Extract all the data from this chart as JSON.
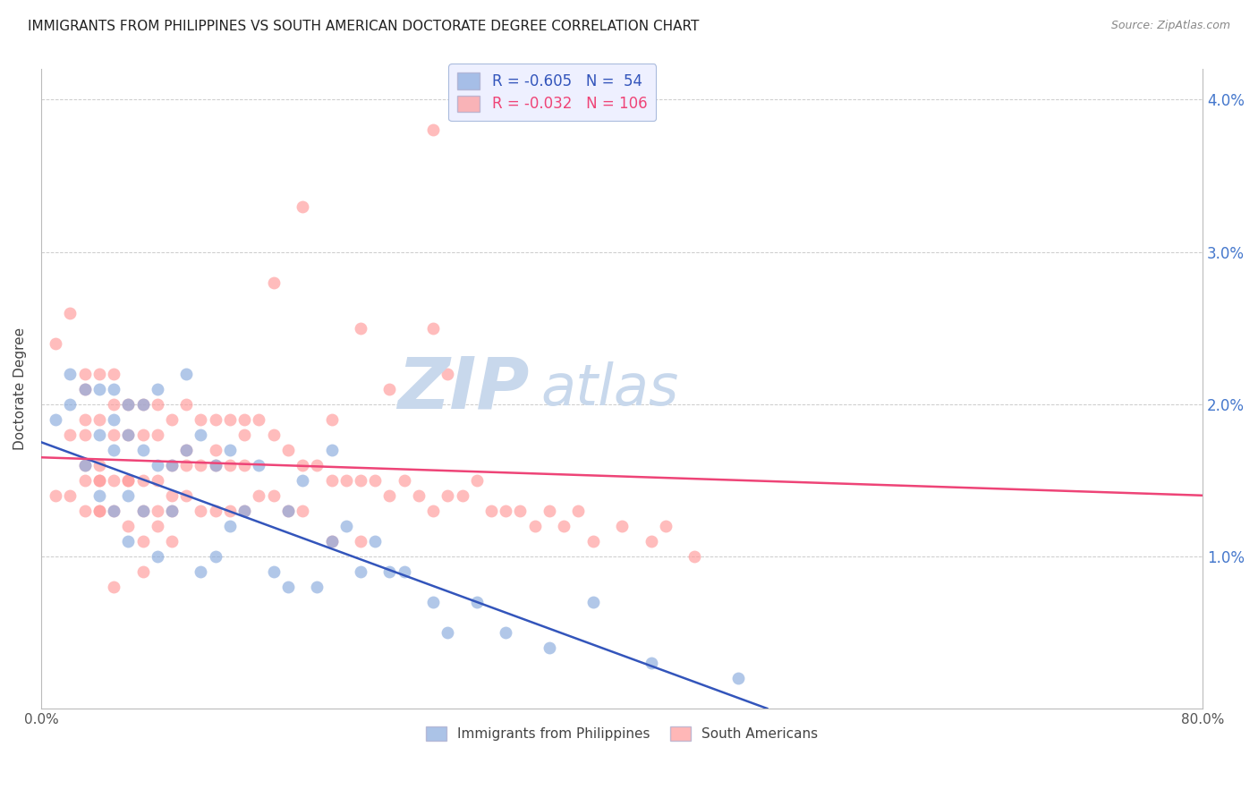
{
  "title": "IMMIGRANTS FROM PHILIPPINES VS SOUTH AMERICAN DOCTORATE DEGREE CORRELATION CHART",
  "source": "Source: ZipAtlas.com",
  "ylabel": "Doctorate Degree",
  "xlim": [
    0.0,
    0.8
  ],
  "ylim": [
    0.0,
    0.042
  ],
  "philippines_R": -0.605,
  "philippines_N": 54,
  "south_american_R": -0.032,
  "south_american_N": 106,
  "philippines_color": "#88AADD",
  "south_american_color": "#FF9999",
  "philippines_line_color": "#3355BB",
  "south_american_line_color": "#EE4477",
  "background_color": "#FFFFFF",
  "grid_color": "#CCCCCC",
  "title_color": "#222222",
  "axis_label_color": "#444444",
  "right_axis_color": "#4477CC",
  "watermark_zip_color": "#C8D8EC",
  "watermark_atlas_color": "#C8D8EC",
  "legend_box_color": "#EEF0FF",
  "philippines_x": [
    0.01,
    0.02,
    0.02,
    0.03,
    0.03,
    0.04,
    0.04,
    0.04,
    0.05,
    0.05,
    0.05,
    0.05,
    0.06,
    0.06,
    0.06,
    0.06,
    0.07,
    0.07,
    0.07,
    0.08,
    0.08,
    0.08,
    0.09,
    0.09,
    0.1,
    0.1,
    0.11,
    0.11,
    0.12,
    0.12,
    0.13,
    0.13,
    0.14,
    0.15,
    0.16,
    0.17,
    0.17,
    0.18,
    0.19,
    0.2,
    0.2,
    0.21,
    0.22,
    0.23,
    0.24,
    0.25,
    0.27,
    0.28,
    0.3,
    0.32,
    0.35,
    0.38,
    0.42,
    0.48
  ],
  "philippines_y": [
    0.019,
    0.022,
    0.02,
    0.021,
    0.016,
    0.021,
    0.018,
    0.014,
    0.021,
    0.019,
    0.017,
    0.013,
    0.02,
    0.018,
    0.014,
    0.011,
    0.02,
    0.017,
    0.013,
    0.021,
    0.016,
    0.01,
    0.016,
    0.013,
    0.022,
    0.017,
    0.018,
    0.009,
    0.016,
    0.01,
    0.017,
    0.012,
    0.013,
    0.016,
    0.009,
    0.013,
    0.008,
    0.015,
    0.008,
    0.017,
    0.011,
    0.012,
    0.009,
    0.011,
    0.009,
    0.009,
    0.007,
    0.005,
    0.007,
    0.005,
    0.004,
    0.007,
    0.003,
    0.002
  ],
  "south_american_x": [
    0.01,
    0.01,
    0.02,
    0.02,
    0.03,
    0.03,
    0.03,
    0.04,
    0.04,
    0.04,
    0.04,
    0.05,
    0.05,
    0.05,
    0.05,
    0.05,
    0.06,
    0.06,
    0.06,
    0.06,
    0.07,
    0.07,
    0.07,
    0.07,
    0.07,
    0.08,
    0.08,
    0.08,
    0.08,
    0.09,
    0.09,
    0.09,
    0.09,
    0.1,
    0.1,
    0.1,
    0.11,
    0.11,
    0.11,
    0.12,
    0.12,
    0.12,
    0.13,
    0.13,
    0.13,
    0.14,
    0.14,
    0.14,
    0.15,
    0.15,
    0.16,
    0.16,
    0.17,
    0.17,
    0.18,
    0.18,
    0.19,
    0.2,
    0.2,
    0.21,
    0.22,
    0.22,
    0.23,
    0.24,
    0.25,
    0.26,
    0.27,
    0.27,
    0.28,
    0.29,
    0.3,
    0.31,
    0.32,
    0.33,
    0.34,
    0.35,
    0.36,
    0.37,
    0.38,
    0.4,
    0.42,
    0.43,
    0.45,
    0.27,
    0.18,
    0.16,
    0.22,
    0.28,
    0.24,
    0.2,
    0.14,
    0.12,
    0.1,
    0.09,
    0.08,
    0.07,
    0.06,
    0.05,
    0.04,
    0.04,
    0.03,
    0.03,
    0.03,
    0.02,
    0.03,
    0.04
  ],
  "south_american_y": [
    0.024,
    0.014,
    0.026,
    0.018,
    0.022,
    0.018,
    0.015,
    0.022,
    0.019,
    0.016,
    0.013,
    0.022,
    0.02,
    0.018,
    0.015,
    0.013,
    0.02,
    0.018,
    0.015,
    0.012,
    0.02,
    0.018,
    0.015,
    0.013,
    0.011,
    0.02,
    0.018,
    0.015,
    0.013,
    0.019,
    0.016,
    0.014,
    0.011,
    0.02,
    0.017,
    0.014,
    0.019,
    0.016,
    0.013,
    0.019,
    0.016,
    0.013,
    0.019,
    0.016,
    0.013,
    0.019,
    0.016,
    0.013,
    0.019,
    0.014,
    0.018,
    0.014,
    0.017,
    0.013,
    0.016,
    0.013,
    0.016,
    0.015,
    0.011,
    0.015,
    0.015,
    0.011,
    0.015,
    0.014,
    0.015,
    0.014,
    0.025,
    0.013,
    0.014,
    0.014,
    0.015,
    0.013,
    0.013,
    0.013,
    0.012,
    0.013,
    0.012,
    0.013,
    0.011,
    0.012,
    0.011,
    0.012,
    0.01,
    0.038,
    0.033,
    0.028,
    0.025,
    0.022,
    0.021,
    0.019,
    0.018,
    0.017,
    0.016,
    0.013,
    0.012,
    0.009,
    0.015,
    0.008,
    0.015,
    0.015,
    0.021,
    0.019,
    0.016,
    0.014,
    0.013,
    0.013
  ],
  "phil_line_x0": 0.0,
  "phil_line_y0": 0.0175,
  "phil_line_x1": 0.5,
  "phil_line_y1": 0.0,
  "sa_line_x0": 0.0,
  "sa_line_y0": 0.0165,
  "sa_line_x1": 0.8,
  "sa_line_y1": 0.014
}
